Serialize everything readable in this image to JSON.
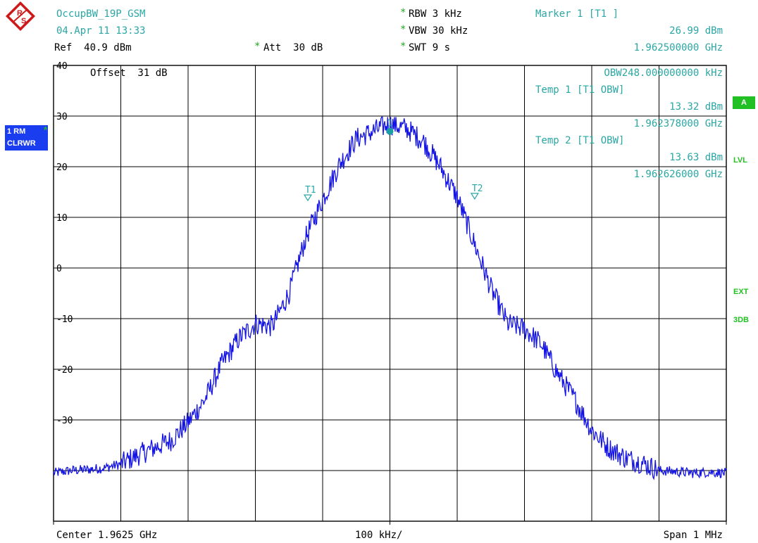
{
  "header": {
    "trace_name": "OccupBW_19P_GSM",
    "date": "04.Apr 11 13:33",
    "ref": "Ref  40.9 dBm",
    "att_star": "*",
    "att": "Att  30 dB",
    "rbw_star": "*",
    "rbw": "RBW 3 kHz",
    "vbw_star": "*",
    "vbw": "VBW 30 kHz",
    "swt_star": "*",
    "swt": "SWT 9 s",
    "marker_title": "Marker 1 [T1 ]",
    "marker_level": "26.99 dBm",
    "marker_freq": "1.962500000 GHz"
  },
  "plot_info": {
    "offset": "Offset  31 dB",
    "obw": "OBW248.000000000 kHz",
    "temp1_title": "Temp 1 [T1 OBW]",
    "temp1_level": "13.32 dBm",
    "temp1_freq": "1.962378000 GHz",
    "temp2_title": "Temp 2 [T1 OBW]",
    "temp2_level": "13.63 dBm",
    "temp2_freq": "1.962626000 GHz",
    "marker1_label": "1",
    "t1_label": "T1",
    "t2_label": "T2"
  },
  "sidebar": {
    "trace_mode": "1 RM",
    "trace_star": "*",
    "clrwr": "CLRWR",
    "a": "A",
    "lvl": "LVL",
    "ext": "EXT",
    "db3": "3DB"
  },
  "footer": {
    "center": "Center 1.9625 GHz",
    "div": "100 kHz/",
    "span": "Span 1 MHz"
  },
  "colors": {
    "trace": "#1414e6",
    "teal": "#2aa7a4",
    "grid": "#000000",
    "side_blue": "#1a3df0",
    "side_green": "#22c022"
  },
  "chart_data": {
    "type": "line",
    "xlabel": "",
    "ylabel": "",
    "x_unit": "MHz offset from center",
    "xlim": [
      -0.5,
      0.5
    ],
    "ylim": [
      -50,
      40
    ],
    "ytick_labels": [
      "40",
      "30",
      "20",
      "10",
      "0",
      "-10",
      "-20",
      "-30"
    ],
    "grid": true,
    "series": [
      {
        "x": [
          -0.5,
          -0.475,
          -0.45,
          -0.425,
          -0.4,
          -0.375,
          -0.35,
          -0.325,
          -0.3,
          -0.275,
          -0.25,
          -0.225,
          -0.2,
          -0.175,
          -0.15,
          -0.125,
          -0.1,
          -0.075,
          -0.05,
          -0.025,
          0.0,
          0.025,
          0.05,
          0.075,
          0.1,
          0.125,
          0.15,
          0.175,
          0.2,
          0.225,
          0.25,
          0.275,
          0.3,
          0.325,
          0.35,
          0.375,
          0.4,
          0.425,
          0.45,
          0.475,
          0.5
        ],
        "y": [
          -40.5,
          -40.0,
          -39.8,
          -39.5,
          -38.7,
          -37.0,
          -35.5,
          -34.0,
          -30.5,
          -26.0,
          -19.0,
          -14.0,
          -11.0,
          -11.5,
          -5.0,
          6.0,
          13.5,
          20.5,
          25.5,
          27.0,
          28.5,
          27.5,
          25.0,
          20.0,
          14.0,
          5.0,
          -4.0,
          -11.0,
          -12.0,
          -15.0,
          -21.0,
          -26.0,
          -32.0,
          -35.5,
          -37.5,
          -38.5,
          -40.0,
          -40.2,
          -40.5,
          -40.3,
          -40.5
        ]
      }
    ],
    "markers": [
      {
        "label": "1",
        "x": 0.0,
        "y": 26.99
      },
      {
        "label": "T1",
        "x": -0.122,
        "y": 13.32
      },
      {
        "label": "T2",
        "x": 0.126,
        "y": 13.63
      }
    ]
  }
}
